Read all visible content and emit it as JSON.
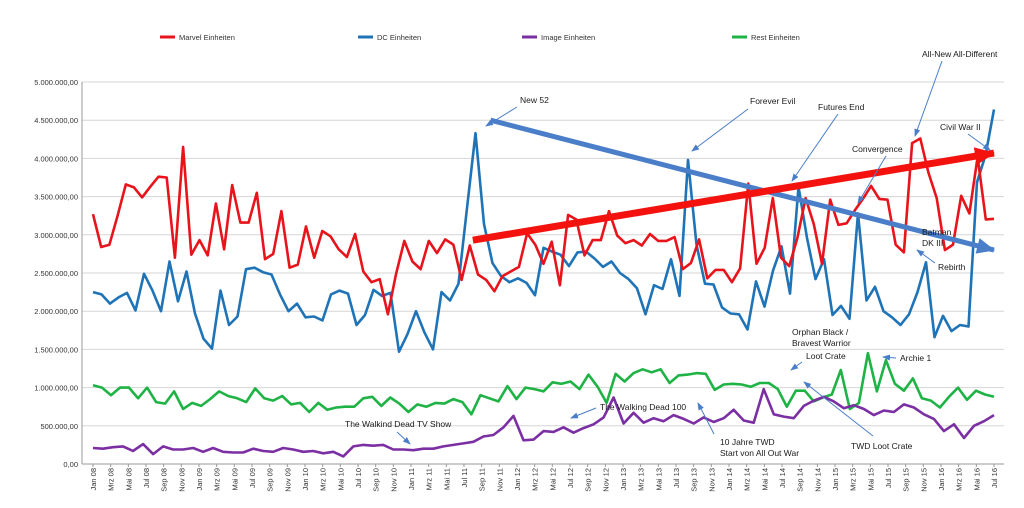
{
  "chart_data": {
    "type": "line",
    "title": "",
    "xlabel": "",
    "ylabel": "",
    "ylim": [
      0,
      5000000
    ],
    "y_ticks": [
      "0,00",
      "500.000,00",
      "1.000.000,00",
      "1.500.000,00",
      "2.000.000,00",
      "2.500.000,00",
      "3.000.000,00",
      "3.500.000,00",
      "4.000.000,00",
      "4.500.000,00",
      "5.000.000,00"
    ],
    "x_ticks": [
      "Jan 08",
      "Mrz 08",
      "Mai 08",
      "Jul 08",
      "Sep 08",
      "Nov 08",
      "Jan 09",
      "Mrz 09",
      "Mai 09",
      "Jul 09",
      "Sep 09",
      "Nov 09",
      "Jan 10",
      "Mrz 10",
      "Mai 10",
      "Jul 10",
      "Sep 10",
      "Nov 10",
      "Jan 11",
      "Mrz 11",
      "Mai 11",
      "Jul 11",
      "Sep 11",
      "Nov 11",
      "Jan 12",
      "Mrz 12",
      "Mai 12",
      "Jul 12",
      "Sep 12",
      "Nov 12",
      "Jan 13",
      "Mrz 13",
      "Mai 13",
      "Jul 13",
      "Sep 13",
      "Nov 13",
      "Jan 14",
      "Mrz 14",
      "Mai 14",
      "Jul 14",
      "Sep 14",
      "Nov 14",
      "Jan 15",
      "Mrz 15",
      "Mai 15",
      "Jul 15",
      "Sep 15",
      "Nov 15",
      "Jan 16",
      "Mrz 16",
      "Mai 16",
      "Jul 16"
    ],
    "grid": "horizontal",
    "legend_position": "top",
    "series": [
      {
        "name": "Marvel Einheiten",
        "color": "#e8141b",
        "values": [
          3270000,
          2840000,
          2870000,
          3250000,
          3660000,
          3620000,
          3490000,
          3630000,
          3760000,
          3750000,
          2700000,
          4150000,
          2740000,
          2930000,
          2730000,
          3410000,
          2810000,
          3650000,
          3160000,
          3160000,
          3550000,
          2680000,
          2750000,
          3310000,
          2570000,
          2610000,
          3110000,
          2700000,
          3050000,
          2980000,
          2810000,
          2710000,
          3010000,
          2520000,
          2380000,
          2420000,
          1960000,
          2490000,
          2920000,
          2650000,
          2550000,
          2920000,
          2760000,
          2940000,
          2870000,
          2410000,
          2860000,
          2480000,
          2410000,
          2260000,
          2460000,
          2520000,
          2580000,
          3020000,
          2870000,
          2620000,
          2910000,
          2340000,
          3260000,
          3200000,
          2730000,
          2930000,
          2930000,
          3310000,
          2990000,
          2890000,
          2930000,
          2860000,
          3010000,
          2920000,
          2920000,
          2970000,
          2550000,
          2630000,
          2940000,
          2430000,
          2540000,
          2540000,
          2380000,
          2560000,
          3670000,
          2620000,
          2830000,
          3480000,
          2700000,
          2590000,
          2960000,
          3480000,
          3140000,
          2620000,
          3460000,
          3130000,
          3150000,
          3320000,
          3470000,
          3640000,
          3470000,
          3460000,
          2870000,
          2770000,
          4200000,
          4260000,
          3810000,
          3480000,
          2800000,
          2870000,
          3510000,
          3280000,
          4020000,
          3200000,
          3210000
        ]
      },
      {
        "name": "DC Einheiten",
        "color": "#1f73b7",
        "values": [
          2250000,
          2220000,
          2100000,
          2180000,
          2240000,
          2010000,
          2490000,
          2270000,
          2000000,
          2650000,
          2130000,
          2520000,
          1970000,
          1640000,
          1510000,
          2270000,
          1820000,
          1930000,
          2550000,
          2570000,
          2510000,
          2480000,
          2220000,
          2000000,
          2100000,
          1920000,
          1930000,
          1880000,
          2220000,
          2270000,
          2230000,
          1820000,
          1950000,
          2280000,
          2200000,
          2240000,
          1470000,
          1700000,
          2000000,
          1720000,
          1500000,
          2250000,
          2140000,
          2360000,
          3350000,
          4330000,
          3140000,
          2630000,
          2460000,
          2380000,
          2430000,
          2370000,
          2210000,
          2830000,
          2780000,
          2740000,
          2590000,
          2770000,
          2780000,
          2690000,
          2580000,
          2650000,
          2500000,
          2420000,
          2300000,
          1960000,
          2340000,
          2290000,
          2680000,
          2200000,
          3980000,
          2870000,
          2360000,
          2350000,
          2050000,
          1970000,
          1960000,
          1760000,
          2390000,
          2060000,
          2530000,
          2850000,
          2230000,
          3630000,
          2960000,
          2420000,
          2680000,
          1950000,
          2070000,
          1900000,
          3280000,
          2140000,
          2320000,
          2000000,
          1920000,
          1820000,
          1960000,
          2250000,
          2640000,
          1660000,
          1940000,
          1740000,
          1820000,
          1800000,
          3690000,
          4040000,
          4640000
        ]
      },
      {
        "name": "Image Einheiten",
        "color": "#7b2fa3",
        "values": [
          210000,
          200000,
          220000,
          230000,
          170000,
          260000,
          130000,
          230000,
          190000,
          190000,
          210000,
          160000,
          210000,
          160000,
          150000,
          150000,
          200000,
          170000,
          160000,
          210000,
          190000,
          160000,
          170000,
          140000,
          160000,
          100000,
          230000,
          250000,
          240000,
          250000,
          190000,
          190000,
          180000,
          200000,
          200000,
          230000,
          250000,
          270000,
          290000,
          360000,
          380000,
          480000,
          630000,
          310000,
          320000,
          430000,
          420000,
          480000,
          410000,
          470000,
          520000,
          610000,
          870000,
          530000,
          670000,
          540000,
          600000,
          560000,
          640000,
          590000,
          530000,
          610000,
          550000,
          600000,
          710000,
          570000,
          540000,
          980000,
          650000,
          620000,
          600000,
          760000,
          830000,
          880000,
          820000,
          730000,
          770000,
          720000,
          640000,
          700000,
          680000,
          780000,
          740000,
          650000,
          590000,
          430000,
          520000,
          340000,
          500000,
          560000,
          640000
        ]
      },
      {
        "name": "Rest Einheiten",
        "color": "#1fb346",
        "values": [
          1030000,
          1000000,
          900000,
          1000000,
          1000000,
          860000,
          1000000,
          810000,
          790000,
          950000,
          720000,
          800000,
          760000,
          850000,
          950000,
          890000,
          860000,
          810000,
          990000,
          860000,
          830000,
          890000,
          780000,
          800000,
          680000,
          800000,
          710000,
          740000,
          750000,
          750000,
          860000,
          880000,
          760000,
          870000,
          790000,
          680000,
          780000,
          750000,
          800000,
          790000,
          850000,
          810000,
          650000,
          900000,
          860000,
          820000,
          1020000,
          850000,
          1000000,
          980000,
          950000,
          1070000,
          1050000,
          1080000,
          980000,
          1170000,
          1010000,
          800000,
          1180000,
          1080000,
          1190000,
          1240000,
          1200000,
          1240000,
          1060000,
          1160000,
          1170000,
          1190000,
          1180000,
          970000,
          1040000,
          1050000,
          1040000,
          1010000,
          1060000,
          1060000,
          980000,
          750000,
          960000,
          960000,
          820000,
          870000,
          910000,
          1230000,
          720000,
          800000,
          1450000,
          950000,
          1360000,
          1050000,
          960000,
          1120000,
          860000,
          830000,
          740000,
          880000,
          1000000,
          840000,
          960000,
          910000,
          880000
        ]
      }
    ],
    "annotations": [
      "New 52",
      "Forever Evil",
      "Futures End",
      "Convergence",
      "All-New All-Different",
      "Civil War II",
      "Batman DK III",
      "Rebirth",
      "Orphan Black / Bravest Warrior",
      "Loot Crate",
      "Archie 1",
      "TWD Loot Crate",
      "10 Jahre TWD Start von All Out War",
      "The Walking Dead 100",
      "The Walkind Dead TV Show"
    ],
    "trend_arrows": [
      {
        "name": "DC-trend",
        "from": {
          "x": "Okt 11",
          "y": 4500000
        },
        "to": {
          "x": "Jul 16",
          "y": 2800000
        },
        "color": "#4a7ec9"
      },
      {
        "name": "Marvel-trend",
        "from": {
          "x": "Aug 11",
          "y": 2930000
        },
        "to": {
          "x": "Jul 16",
          "y": 4070000
        },
        "color": "#f4120e"
      }
    ]
  }
}
